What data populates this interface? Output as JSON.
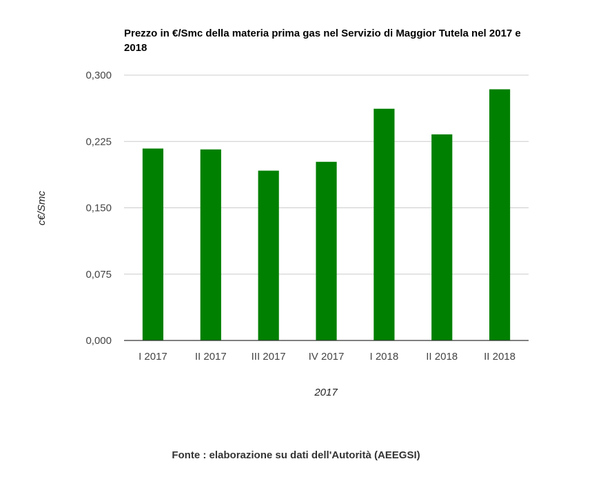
{
  "chart_data": {
    "type": "bar",
    "title": "Prezzo in €/Smc della materia prima gas nel Servizio di Maggior Tutela nel 2017 e 2018",
    "xlabel": "2017",
    "ylabel": "c€/Smc",
    "categories": [
      "I 2017",
      "II 2017",
      "III 2017",
      "IV 2017",
      "I 2018",
      "II 2018",
      "II 2018"
    ],
    "values": [
      0.217,
      0.216,
      0.192,
      0.202,
      0.262,
      0.233,
      0.284
    ],
    "ylim": [
      0,
      0.3
    ],
    "yticks": [
      0,
      0.075,
      0.15,
      0.225,
      0.3
    ],
    "ytick_labels": [
      "0,000",
      "0,075",
      "0,150",
      "0,225",
      "0,300"
    ],
    "grid": true,
    "legend": "none",
    "bar_color": "#008000"
  },
  "footer": {
    "source": "Fonte : elaborazione su dati dell'Autorità (AEEGSI)"
  }
}
